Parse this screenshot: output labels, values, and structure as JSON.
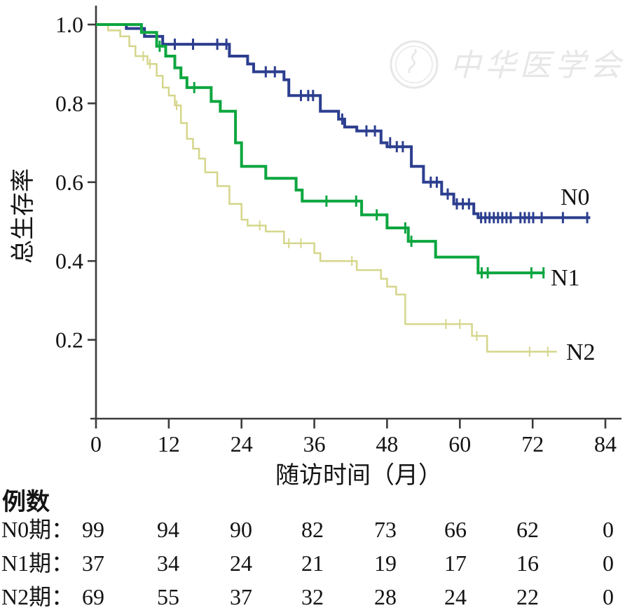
{
  "figure": {
    "background": "#ffffff",
    "watermark": {
      "text": "中华医学会",
      "emblem": "chinese-medical-association-emblem",
      "color": "#e7e7e7"
    }
  },
  "chart_data": {
    "type": "line",
    "subtype": "kaplan-meier-step-survival",
    "title": "",
    "xlabel": "随访时间（月）",
    "ylabel": "总生存率",
    "xlim": [
      0,
      84
    ],
    "ylim": [
      0,
      1.0
    ],
    "xticks": [
      0,
      12,
      24,
      36,
      48,
      60,
      72,
      84
    ],
    "yticks": [
      1.0,
      0.8,
      0.6,
      0.4,
      0.2
    ],
    "ytick_labels": [
      "1.0",
      "0.8",
      "0.6",
      "0.4",
      "0.2"
    ],
    "grid": false,
    "legend_position": "labels-at-curve-ends",
    "series": [
      {
        "name": "N0",
        "color": "#2c3e8f",
        "line_width": 4,
        "steps": [
          [
            0,
            1.0
          ],
          [
            5,
            0.99
          ],
          [
            8,
            0.97
          ],
          [
            11,
            0.95
          ],
          [
            22,
            0.92
          ],
          [
            25,
            0.9
          ],
          [
            26,
            0.88
          ],
          [
            31,
            0.86
          ],
          [
            31.8,
            0.82
          ],
          [
            37,
            0.78
          ],
          [
            40,
            0.76
          ],
          [
            41,
            0.74
          ],
          [
            43,
            0.73
          ],
          [
            47,
            0.7
          ],
          [
            48,
            0.69
          ],
          [
            52,
            0.64
          ],
          [
            54,
            0.6
          ],
          [
            57,
            0.57
          ],
          [
            59,
            0.545
          ],
          [
            62.3,
            0.52
          ],
          [
            63,
            0.51
          ]
        ],
        "end_time": 81.5,
        "censor_marks": [
          [
            13,
            0.95
          ],
          [
            16,
            0.95
          ],
          [
            20,
            0.95
          ],
          [
            21.5,
            0.95
          ],
          [
            28,
            0.88
          ],
          [
            29.5,
            0.88
          ],
          [
            33.8,
            0.82
          ],
          [
            35,
            0.82
          ],
          [
            35.8,
            0.82
          ],
          [
            40.6,
            0.76
          ],
          [
            44.6,
            0.73
          ],
          [
            46,
            0.73
          ],
          [
            48.5,
            0.7
          ],
          [
            49.6,
            0.69
          ],
          [
            50.6,
            0.69
          ],
          [
            55.2,
            0.6
          ],
          [
            56.2,
            0.6
          ],
          [
            58,
            0.57
          ],
          [
            59.5,
            0.545
          ],
          [
            60.5,
            0.545
          ],
          [
            61.5,
            0.545
          ],
          [
            63.5,
            0.51
          ],
          [
            64.2,
            0.51
          ],
          [
            64.9,
            0.51
          ],
          [
            65.6,
            0.51
          ],
          [
            66.3,
            0.51
          ],
          [
            67,
            0.51
          ],
          [
            67.7,
            0.51
          ],
          [
            68.4,
            0.51
          ],
          [
            70,
            0.51
          ],
          [
            70.7,
            0.51
          ],
          [
            71.4,
            0.51
          ],
          [
            72.1,
            0.51
          ],
          [
            73.5,
            0.51
          ],
          [
            77,
            0.51
          ],
          [
            81,
            0.51
          ]
        ],
        "label_pos": {
          "x": 800,
          "y": 292
        }
      },
      {
        "name": "N1",
        "color": "#0ca63f",
        "line_width": 4,
        "steps": [
          [
            0,
            1.0
          ],
          [
            7.5,
            0.98
          ],
          [
            10,
            0.945
          ],
          [
            11.5,
            0.92
          ],
          [
            13,
            0.89
          ],
          [
            14,
            0.865
          ],
          [
            15,
            0.84
          ],
          [
            19,
            0.805
          ],
          [
            20.5,
            0.78
          ],
          [
            23,
            0.7
          ],
          [
            24,
            0.64
          ],
          [
            28,
            0.61
          ],
          [
            33,
            0.58
          ],
          [
            34,
            0.552
          ],
          [
            43.8,
            0.517
          ],
          [
            48,
            0.484
          ],
          [
            51.5,
            0.45
          ],
          [
            56,
            0.41
          ],
          [
            63,
            0.37
          ]
        ],
        "end_time": 74,
        "censor_marks": [
          [
            10.5,
            0.945
          ],
          [
            16.2,
            0.84
          ],
          [
            38,
            0.552
          ],
          [
            42.9,
            0.552
          ],
          [
            46.3,
            0.517
          ],
          [
            51,
            0.484
          ],
          [
            52,
            0.45
          ],
          [
            63.6,
            0.37
          ],
          [
            64.6,
            0.37
          ],
          [
            71.8,
            0.37
          ],
          [
            73.8,
            0.37
          ]
        ],
        "label_pos": {
          "x": 786,
          "y": 407
        }
      },
      {
        "name": "N2",
        "color": "#d5d68b",
        "line_width": 2.5,
        "steps": [
          [
            0,
            1.0
          ],
          [
            2,
            0.985
          ],
          [
            4,
            0.97
          ],
          [
            5.5,
            0.945
          ],
          [
            6.5,
            0.92
          ],
          [
            8.5,
            0.9
          ],
          [
            10,
            0.87
          ],
          [
            11,
            0.84
          ],
          [
            12,
            0.82
          ],
          [
            13,
            0.795
          ],
          [
            14,
            0.75
          ],
          [
            15,
            0.71
          ],
          [
            16,
            0.685
          ],
          [
            17,
            0.66
          ],
          [
            18,
            0.625
          ],
          [
            20,
            0.59
          ],
          [
            22,
            0.545
          ],
          [
            24,
            0.505
          ],
          [
            25,
            0.49
          ],
          [
            28,
            0.475
          ],
          [
            31,
            0.445
          ],
          [
            36,
            0.42
          ],
          [
            37,
            0.4
          ],
          [
            43,
            0.377
          ],
          [
            47,
            0.355
          ],
          [
            48,
            0.335
          ],
          [
            49.5,
            0.315
          ],
          [
            51,
            0.24
          ],
          [
            62,
            0.21
          ],
          [
            64.5,
            0.17
          ]
        ],
        "end_time": 76,
        "censor_marks": [
          [
            7.8,
            0.92
          ],
          [
            8.9,
            0.9
          ],
          [
            13.3,
            0.795
          ],
          [
            27,
            0.49
          ],
          [
            31.8,
            0.445
          ],
          [
            33.8,
            0.445
          ],
          [
            42.2,
            0.4
          ],
          [
            57.7,
            0.24
          ],
          [
            60,
            0.24
          ],
          [
            62.8,
            0.21
          ],
          [
            71.5,
            0.17
          ],
          [
            74.5,
            0.17
          ]
        ],
        "label_pos": {
          "x": 808,
          "y": 513
        }
      }
    ],
    "at_risk_table": {
      "title": "例数",
      "time_points": [
        0,
        12,
        24,
        36,
        48,
        60,
        72,
        84
      ],
      "rows": [
        {
          "label": "N0期：",
          "values": [
            "99",
            "94",
            "90",
            "82",
            "73",
            "66",
            "62",
            "0"
          ]
        },
        {
          "label": "N1期：",
          "values": [
            "37",
            "34",
            "24",
            "21",
            "19",
            "17",
            "16",
            "0"
          ]
        },
        {
          "label": "N2期：",
          "values": [
            "69",
            "55",
            "37",
            "32",
            "28",
            "24",
            "22",
            "0"
          ]
        }
      ]
    }
  }
}
